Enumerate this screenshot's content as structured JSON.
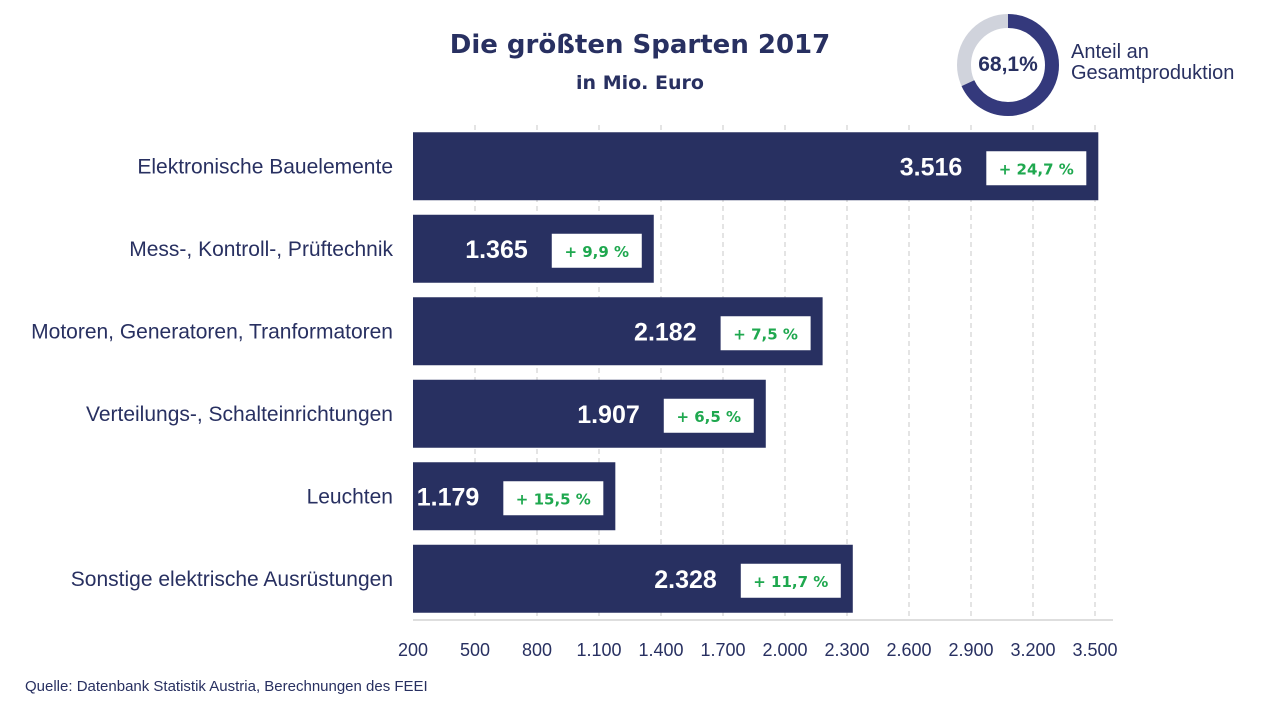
{
  "chart_data": {
    "type": "bar",
    "orientation": "horizontal",
    "title": "Die größten Sparten 2017",
    "subtitle": "in Mio. Euro",
    "categories": [
      "Elektronische Bauelemente",
      "Mess-, Kontroll-, Prüftechnik",
      "Motoren, Generatoren, Tranformatoren",
      "Verteilungs-, Schalteinrichtungen",
      "Leuchten",
      "Sonstige elektrische Ausrüstungen"
    ],
    "values": [
      3516,
      1365,
      2182,
      1907,
      1179,
      2328
    ],
    "value_labels": [
      "3.516",
      "1.365",
      "2.182",
      "1.907",
      "1.179",
      "2.328"
    ],
    "change_labels": [
      "+ 24,7 %",
      "+ 9,9 %",
      "+ 7,5 %",
      "+ 6,5 %",
      "+ 15,5 %",
      "+ 11,7 %"
    ],
    "xlim": [
      200,
      3500
    ],
    "xticks": [
      200,
      500,
      800,
      1100,
      1400,
      1700,
      2000,
      2300,
      2600,
      2900,
      3200,
      3500
    ],
    "xtick_labels": [
      "200",
      "500",
      "800",
      "1.100",
      "1.400",
      "1.700",
      "2.000",
      "2.300",
      "2.600",
      "2.900",
      "3.200",
      "3.500"
    ],
    "grid": "vertical-dashed",
    "bar_color": "#283061",
    "change_color": "#1fa84f"
  },
  "donut": {
    "value": 68.1,
    "label": "68,1%",
    "caption_line1": "Anteil an",
    "caption_line2": "Gesamtproduktion",
    "fill_color": "#34397c",
    "rest_color": "#d0d3dc"
  },
  "source": "Quelle: Datenbank Statistik Austria, Berechnungen des FEEI"
}
